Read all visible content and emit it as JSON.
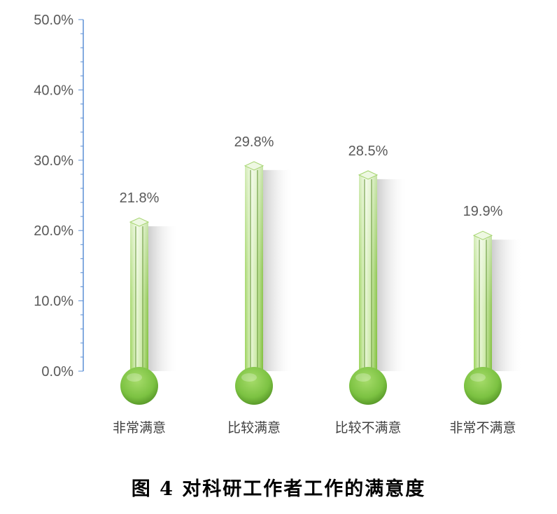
{
  "chart_data": {
    "type": "bar",
    "style": "thermometer",
    "categories": [
      "非常满意",
      "比较满意",
      "比较不满意",
      "非常不满意"
    ],
    "values": [
      21.8,
      29.8,
      28.5,
      19.9
    ],
    "value_labels": [
      "21.8%",
      "29.8%",
      "28.5%",
      "19.9%"
    ],
    "ylim": [
      0,
      50
    ],
    "y_ticks": [
      "0.0%",
      "10.0%",
      "20.0%",
      "30.0%",
      "40.0%",
      "50.0%"
    ],
    "grid": false,
    "legend": "none",
    "colors": {
      "bar": "#8dc63f",
      "bulb": "#7cc242",
      "axis": "#5b8fd6",
      "shadow": "#d9d9d9"
    }
  },
  "caption": "图 4  对科研工作者工作的满意度"
}
